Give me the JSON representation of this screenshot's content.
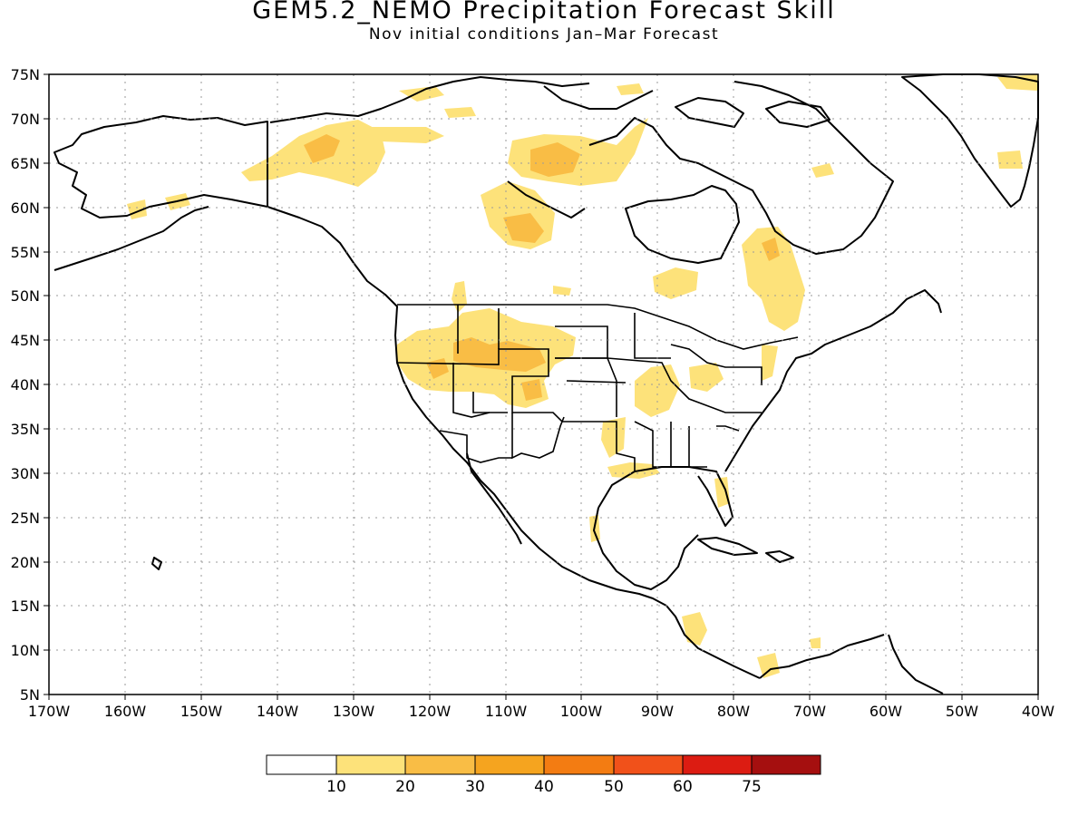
{
  "title": "GEM5.2_NEMO Precipitation Forecast Skill",
  "subtitle": "Nov initial conditions  Jan–Mar Forecast",
  "map": {
    "lon_labels": [
      "170W",
      "160W",
      "150W",
      "140W",
      "130W",
      "120W",
      "110W",
      "100W",
      "90W",
      "80W",
      "70W",
      "60W",
      "50W",
      "40W"
    ],
    "lat_labels": [
      "75N",
      "70N",
      "65N",
      "60N",
      "55N",
      "50N",
      "45N",
      "40N",
      "35N",
      "30N",
      "25N",
      "20N",
      "15N",
      "10N",
      "5N"
    ],
    "region": "North America"
  },
  "colorbar": {
    "labels": [
      "10",
      "20",
      "30",
      "40",
      "50",
      "60",
      "75"
    ],
    "colors": [
      "#ffffff",
      "#fde27a",
      "#f9bd45",
      "#f5a41f",
      "#f37c12",
      "#f1511a",
      "#dc1c12",
      "#a50f0f"
    ]
  },
  "shading_colors": {
    "light": "#fde27a",
    "medium": "#f9bd45"
  }
}
